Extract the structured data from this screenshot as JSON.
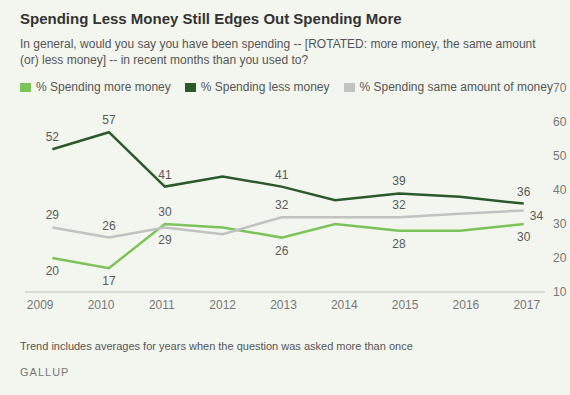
{
  "chart_data": {
    "type": "line",
    "title": "Spending Less Money Still Edges Out Spending More",
    "subtitle": "In general, would you say you have been spending -- [ROTATED: more money, the same amount (or) less money] -- in recent months than you used to?",
    "note": "Trend includes averages for years when the question was asked more than once",
    "source": "GALLUP",
    "x": [
      2009.2,
      2010.13,
      2011.05,
      2012.0,
      2012.97,
      2013.85,
      2014.9,
      2015.9,
      2016.95
    ],
    "series": [
      {
        "name": "% Spending more money",
        "color": "#7cc35a",
        "values": [
          20,
          17,
          30,
          29,
          26,
          30,
          28,
          28,
          30
        ],
        "value_labels": [
          "20",
          "17",
          "30",
          null,
          "26",
          null,
          "28",
          null,
          "30"
        ]
      },
      {
        "name": "% Spending less money",
        "color": "#2b5a2a",
        "values": [
          52,
          57,
          41,
          44,
          41,
          37,
          39,
          38,
          36
        ],
        "value_labels": [
          "52",
          "57",
          "41",
          null,
          "41",
          null,
          "39",
          null,
          "36"
        ]
      },
      {
        "name": "% Spending same amount of money",
        "color": "#c2c2c2",
        "values": [
          29,
          26,
          29,
          27,
          32,
          32,
          32,
          33,
          34
        ],
        "value_labels": [
          "29",
          "26",
          "29",
          null,
          "32",
          null,
          "32",
          null,
          "34"
        ]
      }
    ],
    "xlim": [
      2008.75,
      2017.3
    ],
    "xticks": [
      2009,
      2010,
      2011,
      2012,
      2013,
      2014,
      2015,
      2016,
      2017
    ],
    "ylim": [
      10,
      70
    ],
    "yticks": [
      10,
      20,
      30,
      40,
      50,
      60,
      70
    ],
    "grid": false,
    "legend": "top",
    "data_labels": true
  }
}
